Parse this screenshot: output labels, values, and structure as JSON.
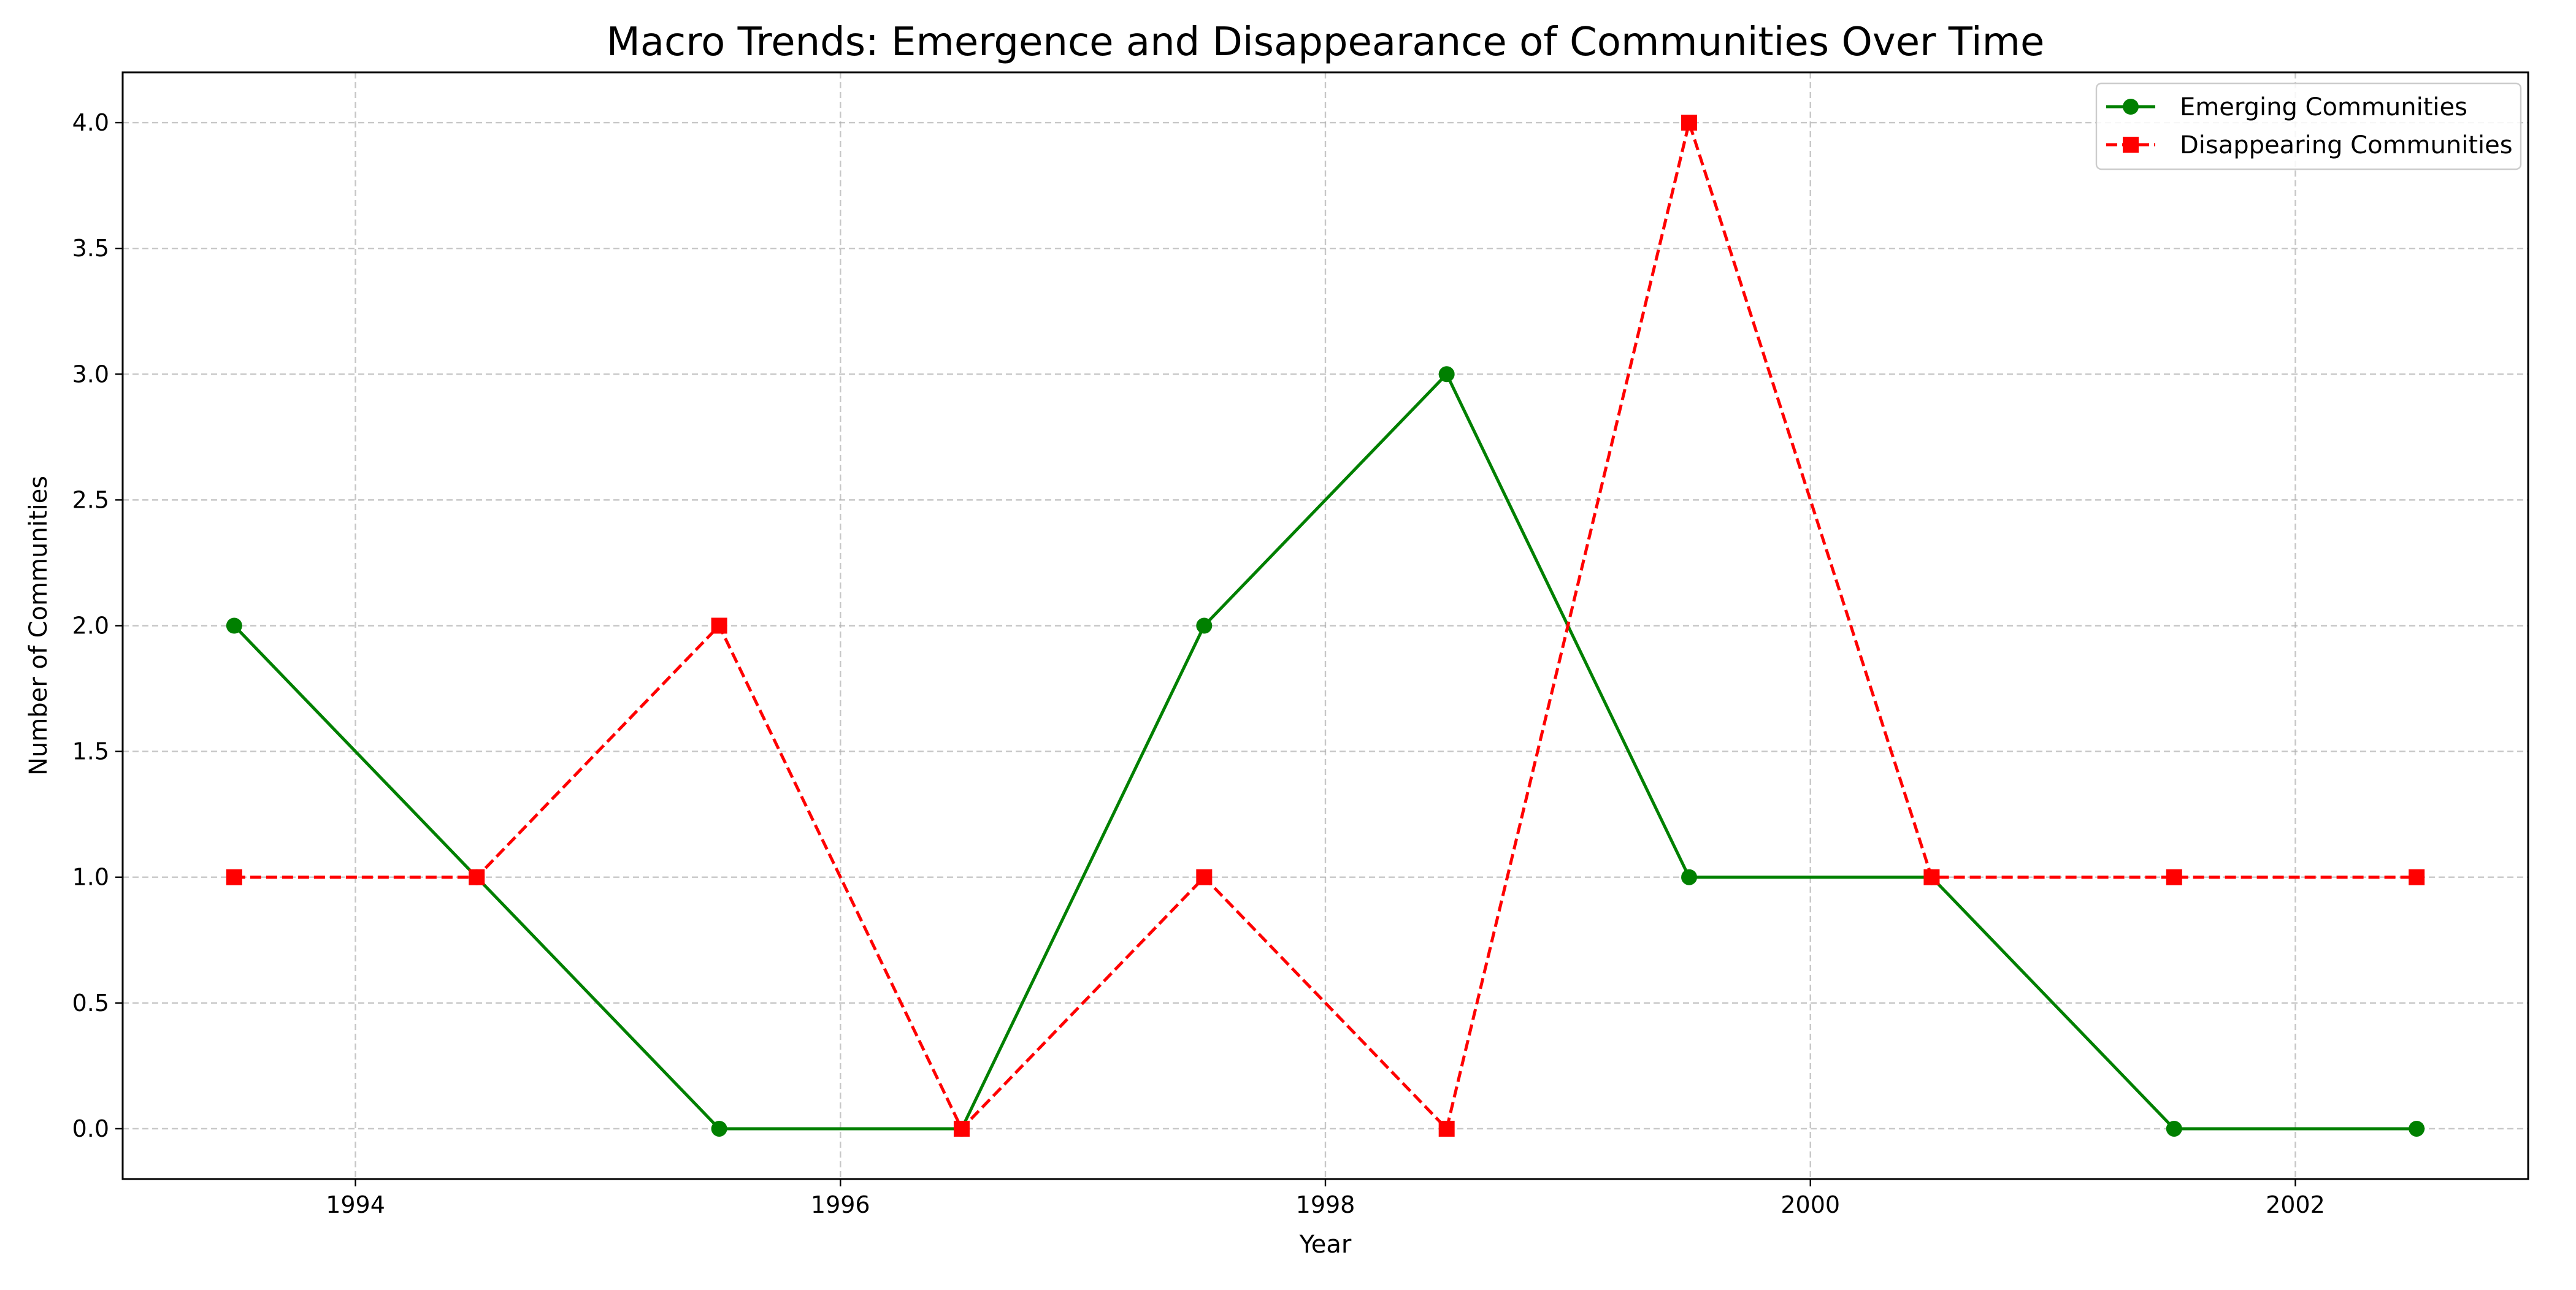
{
  "chart_data": {
    "type": "line",
    "title": "Macro Trends: Emergence and Disappearance of Communities Over Time",
    "xlabel": "Year",
    "ylabel": "Number of Communities",
    "xlim": [
      1993.04,
      2002.96
    ],
    "ylim": [
      -0.2,
      4.2
    ],
    "x_ticks": [
      1994,
      1996,
      1998,
      2000,
      2002
    ],
    "x_tick_labels": [
      "1994",
      "1996",
      "1998",
      "2000",
      "2002"
    ],
    "y_ticks": [
      0.0,
      0.5,
      1.0,
      1.5,
      2.0,
      2.5,
      3.0,
      3.5,
      4.0
    ],
    "y_tick_labels": [
      "0.0",
      "0.5",
      "1.0",
      "1.5",
      "2.0",
      "2.5",
      "3.0",
      "3.5",
      "4.0"
    ],
    "grid": true,
    "legend_position": "top-right",
    "x": [
      1993.5,
      1994.5,
      1995.5,
      1996.5,
      1997.5,
      1998.5,
      1999.5,
      2000.5,
      2001.5,
      2002.5
    ],
    "series": [
      {
        "name": "Emerging Communities",
        "values": [
          2,
          1,
          0,
          0,
          2,
          3,
          1,
          1,
          0,
          0
        ],
        "color": "#008000",
        "line_style": "solid",
        "marker": "circle"
      },
      {
        "name": "Disappearing Communities",
        "values": [
          1,
          1,
          2,
          0,
          1,
          0,
          4,
          1,
          1,
          1
        ],
        "color": "#ff0000",
        "line_style": "dashed",
        "marker": "square"
      }
    ]
  }
}
